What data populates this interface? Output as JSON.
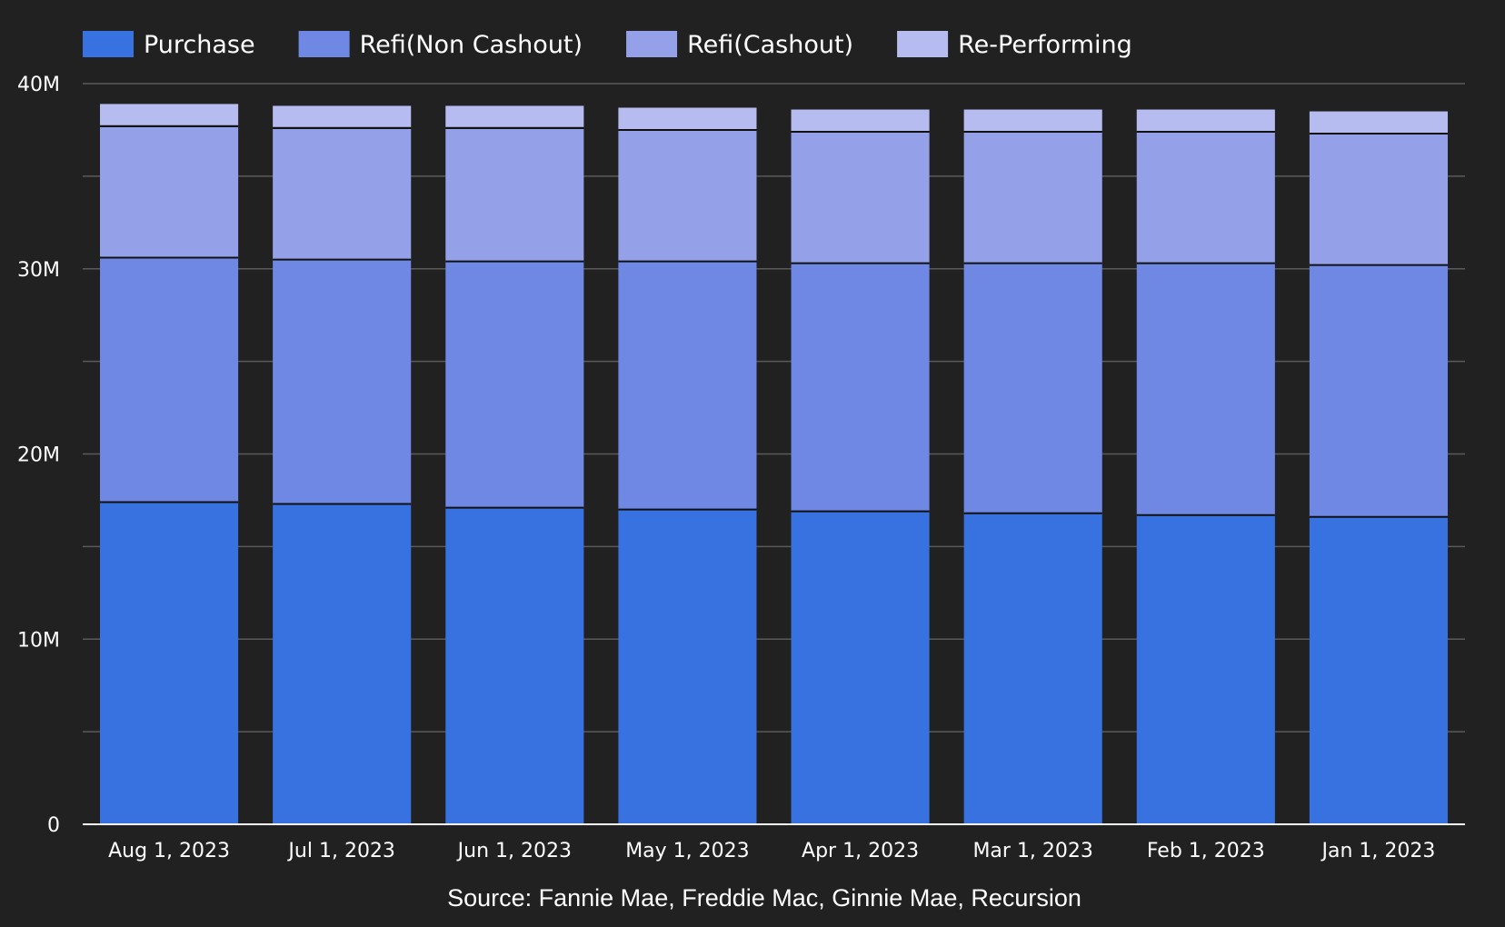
{
  "chart_data": {
    "type": "bar",
    "stacked": true,
    "categories": [
      "Aug 1, 2023",
      "Jul 1, 2023",
      "Jun 1, 2023",
      "May 1, 2023",
      "Apr 1, 2023",
      "Mar 1, 2023",
      "Feb 1, 2023",
      "Jan 1, 2023"
    ],
    "series": [
      {
        "name": "Purchase",
        "color": "#3872e0",
        "values": [
          17.4,
          17.3,
          17.1,
          17.0,
          16.9,
          16.8,
          16.7,
          16.6
        ]
      },
      {
        "name": "Refi(Non Cashout)",
        "color": "#6e88e4",
        "values": [
          13.2,
          13.2,
          13.3,
          13.4,
          13.4,
          13.5,
          13.6,
          13.6
        ]
      },
      {
        "name": "Refi(Cashout)",
        "color": "#94a1e8",
        "values": [
          7.1,
          7.1,
          7.2,
          7.1,
          7.1,
          7.1,
          7.1,
          7.1
        ]
      },
      {
        "name": "Re-Performing",
        "color": "#b6bcf0",
        "values": [
          1.2,
          1.2,
          1.2,
          1.2,
          1.2,
          1.2,
          1.2,
          1.2
        ]
      }
    ],
    "ylim": [
      0,
      40
    ],
    "yticks": [
      {
        "value": 0,
        "label": "0"
      },
      {
        "value": 10,
        "label": "10M"
      },
      {
        "value": 20,
        "label": "20M"
      },
      {
        "value": 30,
        "label": "30M"
      },
      {
        "value": 40,
        "label": "40M"
      }
    ],
    "minor_grid_step": 5,
    "grid": true,
    "legend_position": "top-left",
    "source": "Source: Fannie Mae, Freddie Mac, Ginnie Mae, Recursion"
  },
  "colors": {
    "background": "#212121",
    "grid": "#5a5a5a",
    "axis": "#ffffff",
    "text": "#ffffff",
    "segment_divider": "#111111"
  }
}
